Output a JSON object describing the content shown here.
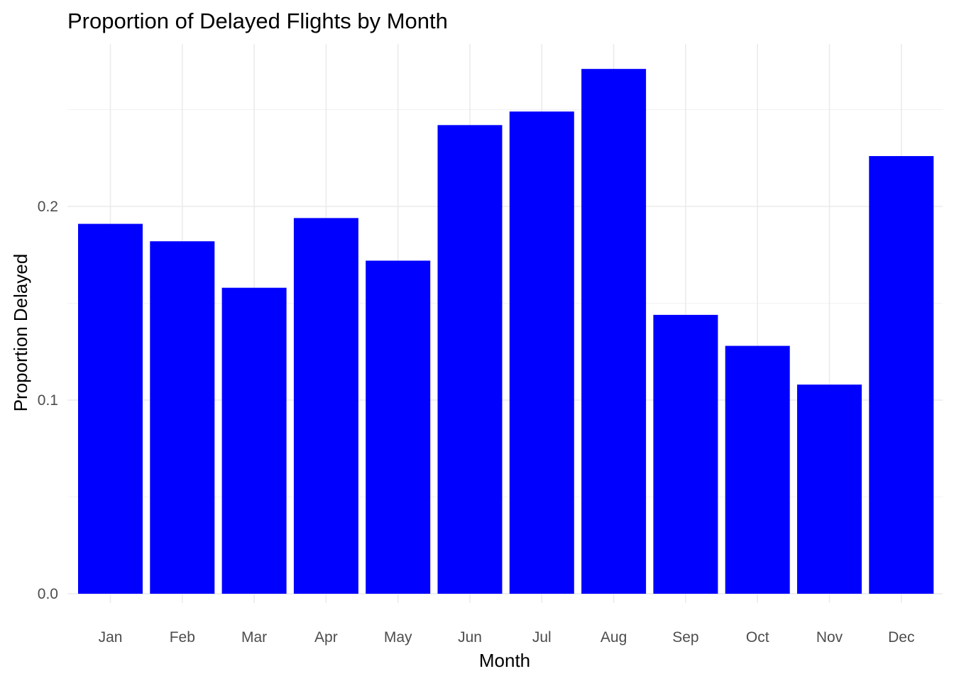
{
  "chart_data": {
    "type": "bar",
    "title": "Proportion of Delayed Flights by Month",
    "xlabel": "Month",
    "ylabel": "Proportion Delayed",
    "categories": [
      "Jan",
      "Feb",
      "Mar",
      "Apr",
      "May",
      "Jun",
      "Jul",
      "Aug",
      "Sep",
      "Oct",
      "Nov",
      "Dec"
    ],
    "values": [
      0.191,
      0.182,
      0.158,
      0.194,
      0.172,
      0.242,
      0.249,
      0.271,
      0.144,
      0.128,
      0.108,
      0.226
    ],
    "ylim": [
      0,
      0.27
    ],
    "yticks": [
      0.0,
      0.1,
      0.2
    ],
    "ytick_labels": [
      "0.0",
      "0.1",
      "0.2"
    ],
    "bar_color": "#0000ff",
    "grid": true,
    "legend": "none"
  }
}
